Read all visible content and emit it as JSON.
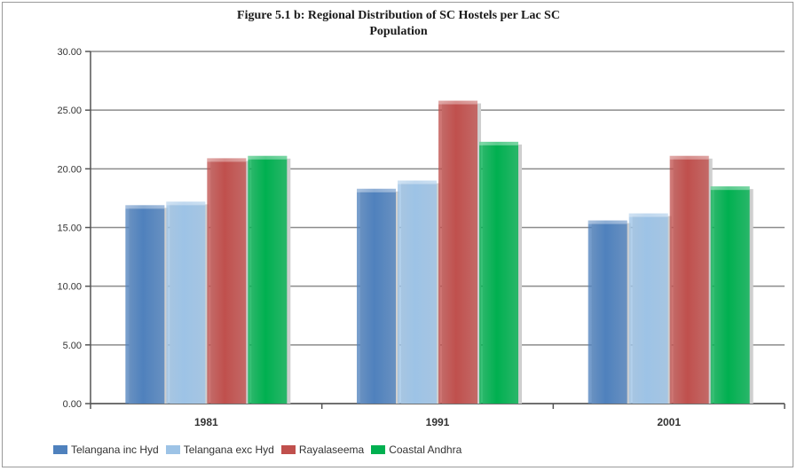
{
  "chart_data": {
    "type": "bar",
    "title": "Figure 5.1 b: Regional Distribution of SC Hostels per Lac SC",
    "title_line2": "Population",
    "categories": [
      "1981",
      "1991",
      "2001"
    ],
    "series": [
      {
        "name": "Telangana inc Hyd",
        "values": [
          16.9,
          18.3,
          15.6
        ],
        "color": "#4f81bd"
      },
      {
        "name": "Telangana exc Hyd",
        "values": [
          17.2,
          19.0,
          16.2
        ],
        "color": "#9dc3e6"
      },
      {
        "name": "Rayalaseema",
        "values": [
          20.9,
          25.8,
          21.1
        ],
        "color": "#c0504d"
      },
      {
        "name": "Coastal Andhra",
        "values": [
          21.1,
          22.3,
          18.5
        ],
        "color": "#00b050"
      }
    ],
    "y_ticks": [
      "0.00",
      "5.00",
      "10.00",
      "15.00",
      "20.00",
      "25.00",
      "30.00"
    ],
    "ylim": [
      0,
      30
    ],
    "grid": true,
    "legend_position": "bottom"
  }
}
